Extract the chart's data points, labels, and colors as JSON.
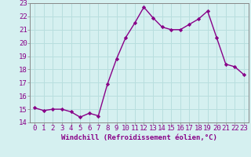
{
  "x": [
    0,
    1,
    2,
    3,
    4,
    5,
    6,
    7,
    8,
    9,
    10,
    11,
    12,
    13,
    14,
    15,
    16,
    17,
    18,
    19,
    20,
    21,
    22,
    23
  ],
  "y": [
    15.1,
    14.9,
    15.0,
    15.0,
    14.8,
    14.4,
    14.7,
    14.5,
    16.9,
    18.8,
    20.4,
    21.5,
    22.7,
    21.9,
    21.2,
    21.0,
    21.0,
    21.4,
    21.8,
    22.4,
    20.4,
    18.4,
    18.2,
    17.6
  ],
  "line_color": "#880088",
  "marker": "D",
  "marker_size": 2.2,
  "bg_color": "#d5f0f0",
  "grid_color": "#b8dede",
  "xlabel": "Windchill (Refroidissement éolien,°C)",
  "xlabel_fontsize": 6.5,
  "tick_fontsize": 6.5,
  "ylim": [
    14,
    23
  ],
  "xlim": [
    -0.5,
    23.5
  ],
  "yticks": [
    14,
    15,
    16,
    17,
    18,
    19,
    20,
    21,
    22,
    23
  ],
  "xticks": [
    0,
    1,
    2,
    3,
    4,
    5,
    6,
    7,
    8,
    9,
    10,
    11,
    12,
    13,
    14,
    15,
    16,
    17,
    18,
    19,
    20,
    21,
    22,
    23
  ],
  "xtick_labels": [
    "0",
    "1",
    "2",
    "3",
    "4",
    "5",
    "6",
    "7",
    "8",
    "9",
    "10",
    "11",
    "12",
    "13",
    "14",
    "15",
    "16",
    "17",
    "18",
    "19",
    "20",
    "21",
    "22",
    "23"
  ],
  "line_width": 1.0,
  "spine_color": "#888888"
}
